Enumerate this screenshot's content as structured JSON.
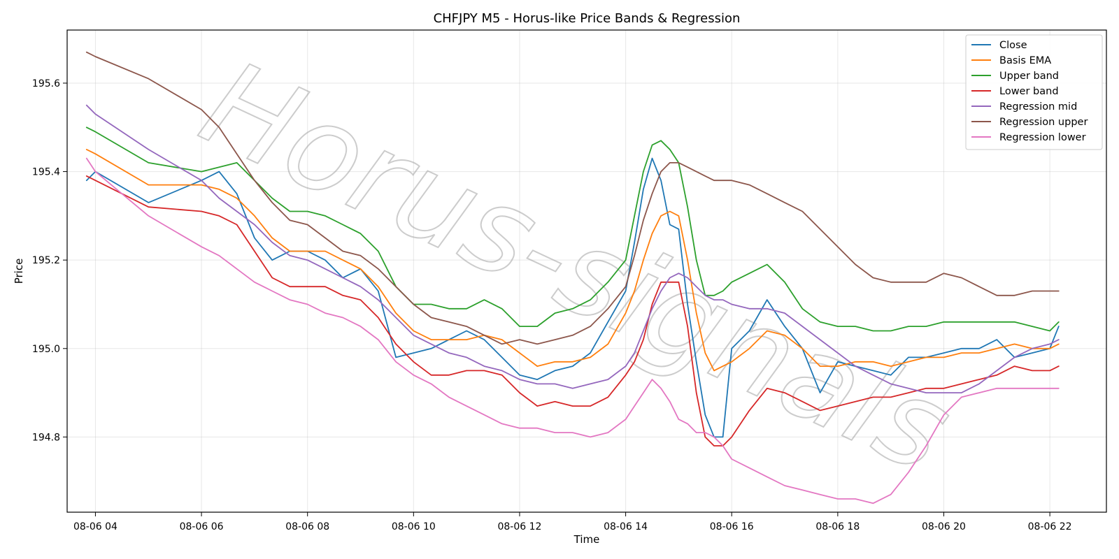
{
  "chart_data": {
    "type": "line",
    "title": "CHFJPY M5 - Horus-like Price Bands & Regression",
    "xlabel": "Time",
    "ylabel": "Price",
    "watermark": "Horus-signals",
    "xlim": [
      "08-06 03:28",
      "08-06 23:04"
    ],
    "ylim": [
      194.63,
      195.72
    ],
    "x_ticks": [
      "08-06 04",
      "08-06 06",
      "08-06 08",
      "08-06 10",
      "08-06 12",
      "08-06 14",
      "08-06 16",
      "08-06 18",
      "08-06 20",
      "08-06 22"
    ],
    "y_ticks": [
      194.8,
      195.0,
      195.2,
      195.4,
      195.6
    ],
    "grid": true,
    "legend_position": "top-right",
    "x_times": [
      "08-06 03:50",
      "08-06 04:00",
      "08-06 05:00",
      "08-06 06:00",
      "08-06 06:20",
      "08-06 06:40",
      "08-06 07:00",
      "08-06 07:20",
      "08-06 07:40",
      "08-06 08:00",
      "08-06 08:20",
      "08-06 08:40",
      "08-06 09:00",
      "08-06 09:20",
      "08-06 09:40",
      "08-06 10:00",
      "08-06 10:20",
      "08-06 10:40",
      "08-06 11:00",
      "08-06 11:20",
      "08-06 11:40",
      "08-06 12:00",
      "08-06 12:20",
      "08-06 12:40",
      "08-06 13:00",
      "08-06 13:20",
      "08-06 13:40",
      "08-06 14:00",
      "08-06 14:10",
      "08-06 14:20",
      "08-06 14:30",
      "08-06 14:40",
      "08-06 14:50",
      "08-06 15:00",
      "08-06 15:10",
      "08-06 15:20",
      "08-06 15:30",
      "08-06 15:40",
      "08-06 15:50",
      "08-06 16:00",
      "08-06 16:20",
      "08-06 16:40",
      "08-06 17:00",
      "08-06 17:20",
      "08-06 17:40",
      "08-06 18:00",
      "08-06 18:20",
      "08-06 18:40",
      "08-06 19:00",
      "08-06 19:20",
      "08-06 19:40",
      "08-06 20:00",
      "08-06 20:20",
      "08-06 20:40",
      "08-06 21:00",
      "08-06 21:20",
      "08-06 21:40",
      "08-06 22:00",
      "08-06 22:10"
    ],
    "series": [
      {
        "name": "Close",
        "color": "#1f77b4",
        "values": [
          195.38,
          195.4,
          195.33,
          195.38,
          195.4,
          195.35,
          195.25,
          195.2,
          195.22,
          195.22,
          195.2,
          195.16,
          195.18,
          195.13,
          194.98,
          194.99,
          195.0,
          195.02,
          195.04,
          195.02,
          194.98,
          194.94,
          194.93,
          194.95,
          194.96,
          194.99,
          195.06,
          195.13,
          195.24,
          195.36,
          195.43,
          195.38,
          195.28,
          195.27,
          195.1,
          194.97,
          194.85,
          194.8,
          194.8,
          195.0,
          195.04,
          195.11,
          195.05,
          195.0,
          194.9,
          194.97,
          194.96,
          194.95,
          194.94,
          194.98,
          194.98,
          194.99,
          195.0,
          195.0,
          195.02,
          194.98,
          194.99,
          195.0,
          195.05
        ]
      },
      {
        "name": "Basis EMA",
        "color": "#ff7f0e",
        "values": [
          195.45,
          195.44,
          195.37,
          195.37,
          195.36,
          195.34,
          195.3,
          195.25,
          195.22,
          195.22,
          195.22,
          195.2,
          195.18,
          195.14,
          195.08,
          195.04,
          195.02,
          195.02,
          195.02,
          195.03,
          195.02,
          194.99,
          194.96,
          194.97,
          194.97,
          194.98,
          195.01,
          195.08,
          195.13,
          195.2,
          195.26,
          195.3,
          195.31,
          195.3,
          195.2,
          195.08,
          194.99,
          194.95,
          194.96,
          194.97,
          195.0,
          195.04,
          195.03,
          195.0,
          194.96,
          194.96,
          194.97,
          194.97,
          194.96,
          194.97,
          194.98,
          194.98,
          194.99,
          194.99,
          195.0,
          195.01,
          195.0,
          195.0,
          195.01
        ]
      },
      {
        "name": "Upper band",
        "color": "#2ca02c",
        "values": [
          195.5,
          195.49,
          195.42,
          195.4,
          195.41,
          195.42,
          195.38,
          195.34,
          195.31,
          195.31,
          195.3,
          195.28,
          195.26,
          195.22,
          195.14,
          195.1,
          195.1,
          195.09,
          195.09,
          195.11,
          195.09,
          195.05,
          195.05,
          195.08,
          195.09,
          195.11,
          195.15,
          195.2,
          195.3,
          195.4,
          195.46,
          195.47,
          195.45,
          195.42,
          195.32,
          195.2,
          195.12,
          195.12,
          195.13,
          195.15,
          195.17,
          195.19,
          195.15,
          195.09,
          195.06,
          195.05,
          195.05,
          195.04,
          195.04,
          195.05,
          195.05,
          195.06,
          195.06,
          195.06,
          195.06,
          195.06,
          195.05,
          195.04,
          195.06
        ]
      },
      {
        "name": "Lower band",
        "color": "#d62728",
        "values": [
          195.39,
          195.38,
          195.32,
          195.31,
          195.3,
          195.28,
          195.22,
          195.16,
          195.14,
          195.14,
          195.14,
          195.12,
          195.11,
          195.07,
          195.01,
          194.97,
          194.94,
          194.94,
          194.95,
          194.95,
          194.94,
          194.9,
          194.87,
          194.88,
          194.87,
          194.87,
          194.89,
          194.94,
          194.97,
          195.02,
          195.1,
          195.15,
          195.15,
          195.15,
          195.05,
          194.9,
          194.8,
          194.78,
          194.78,
          194.8,
          194.86,
          194.91,
          194.9,
          194.88,
          194.86,
          194.87,
          194.88,
          194.89,
          194.89,
          194.9,
          194.91,
          194.91,
          194.92,
          194.93,
          194.94,
          194.96,
          194.95,
          194.95,
          194.96
        ]
      },
      {
        "name": "Regression mid",
        "color": "#9467bd",
        "values": [
          195.55,
          195.53,
          195.45,
          195.38,
          195.34,
          195.31,
          195.28,
          195.24,
          195.21,
          195.2,
          195.18,
          195.16,
          195.14,
          195.11,
          195.07,
          195.03,
          195.01,
          194.99,
          194.98,
          194.96,
          194.95,
          194.93,
          194.92,
          194.92,
          194.91,
          194.92,
          194.93,
          194.96,
          194.99,
          195.04,
          195.09,
          195.13,
          195.16,
          195.17,
          195.16,
          195.14,
          195.12,
          195.11,
          195.11,
          195.1,
          195.09,
          195.09,
          195.08,
          195.05,
          195.02,
          194.99,
          194.96,
          194.94,
          194.92,
          194.91,
          194.9,
          194.9,
          194.9,
          194.92,
          194.95,
          194.98,
          195.0,
          195.01,
          195.02
        ]
      },
      {
        "name": "Regression upper",
        "color": "#8c564b",
        "values": [
          195.67,
          195.66,
          195.61,
          195.54,
          195.5,
          195.44,
          195.38,
          195.33,
          195.29,
          195.28,
          195.25,
          195.22,
          195.21,
          195.18,
          195.14,
          195.1,
          195.07,
          195.06,
          195.05,
          195.03,
          195.01,
          195.02,
          195.01,
          195.02,
          195.03,
          195.05,
          195.09,
          195.14,
          195.21,
          195.29,
          195.35,
          195.4,
          195.42,
          195.42,
          195.41,
          195.4,
          195.39,
          195.38,
          195.38,
          195.38,
          195.37,
          195.35,
          195.33,
          195.31,
          195.27,
          195.23,
          195.19,
          195.16,
          195.15,
          195.15,
          195.15,
          195.17,
          195.16,
          195.14,
          195.12,
          195.12,
          195.13,
          195.13,
          195.13
        ]
      },
      {
        "name": "Regression lower",
        "color": "#e377c2",
        "values": [
          195.43,
          195.4,
          195.3,
          195.23,
          195.21,
          195.18,
          195.15,
          195.13,
          195.11,
          195.1,
          195.08,
          195.07,
          195.05,
          195.02,
          194.97,
          194.94,
          194.92,
          194.89,
          194.87,
          194.85,
          194.83,
          194.82,
          194.82,
          194.81,
          194.81,
          194.8,
          194.81,
          194.84,
          194.87,
          194.9,
          194.93,
          194.91,
          194.88,
          194.84,
          194.83,
          194.81,
          194.81,
          194.8,
          194.78,
          194.75,
          194.73,
          194.71,
          194.69,
          194.68,
          194.67,
          194.66,
          194.66,
          194.65,
          194.67,
          194.72,
          194.78,
          194.85,
          194.89,
          194.9,
          194.91,
          194.91,
          194.91,
          194.91,
          194.91
        ]
      }
    ]
  }
}
